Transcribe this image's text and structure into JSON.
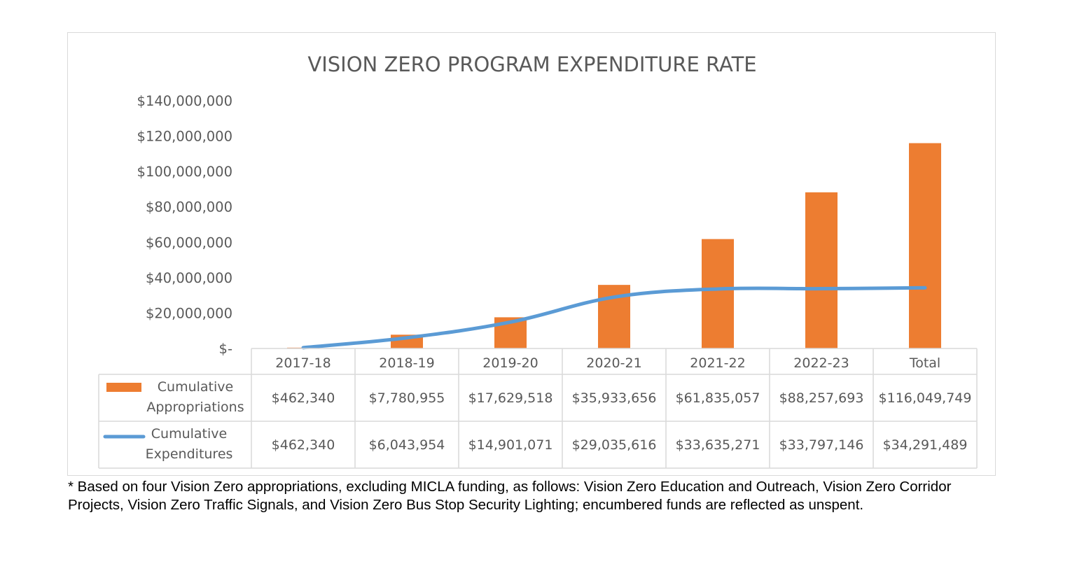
{
  "chart_data": {
    "type": "bar",
    "title": "VISION ZERO PROGRAM EXPENDITURE RATE",
    "categories": [
      "2017-18",
      "2018-19",
      "2019-20",
      "2020-21",
      "2021-22",
      "2022-23",
      "Total"
    ],
    "y_ticks": [
      "$-",
      "$20,000,000",
      "$40,000,000",
      "$60,000,000",
      "$80,000,000",
      "$100,000,000",
      "$120,000,000",
      "$140,000,000"
    ],
    "ylim": [
      0,
      140000000
    ],
    "grid": false,
    "legend": "data-table",
    "series": [
      {
        "name": "Cumulative Appropriations",
        "type": "bar",
        "color": "#ed7d31",
        "values": [
          462340,
          7780955,
          17629518,
          35933656,
          61835057,
          88257693,
          116049749
        ],
        "labels": [
          "$462,340",
          "$7,780,955",
          "$17,629,518",
          "$35,933,656",
          "$61,835,057",
          "$88,257,693",
          "$116,049,749"
        ]
      },
      {
        "name": "Cumulative Expenditures",
        "type": "line",
        "color": "#5b9bd5",
        "values": [
          462340,
          6043954,
          14901071,
          29035616,
          33635271,
          33797146,
          34291489
        ],
        "labels": [
          "$462,340",
          "$6,043,954",
          "$14,901,071",
          "$29,035,616",
          "$33,635,271",
          "$33,797,146",
          "$34,291,489"
        ]
      }
    ]
  },
  "footnote": "* Based on four Vision Zero appropriations, excluding MICLA funding, as follows: Vision Zero Education and Outreach, Vision Zero Corridor Projects, Vision Zero Traffic Signals, and Vision Zero Bus Stop Security Lighting; encumbered funds are reflected as unspent."
}
